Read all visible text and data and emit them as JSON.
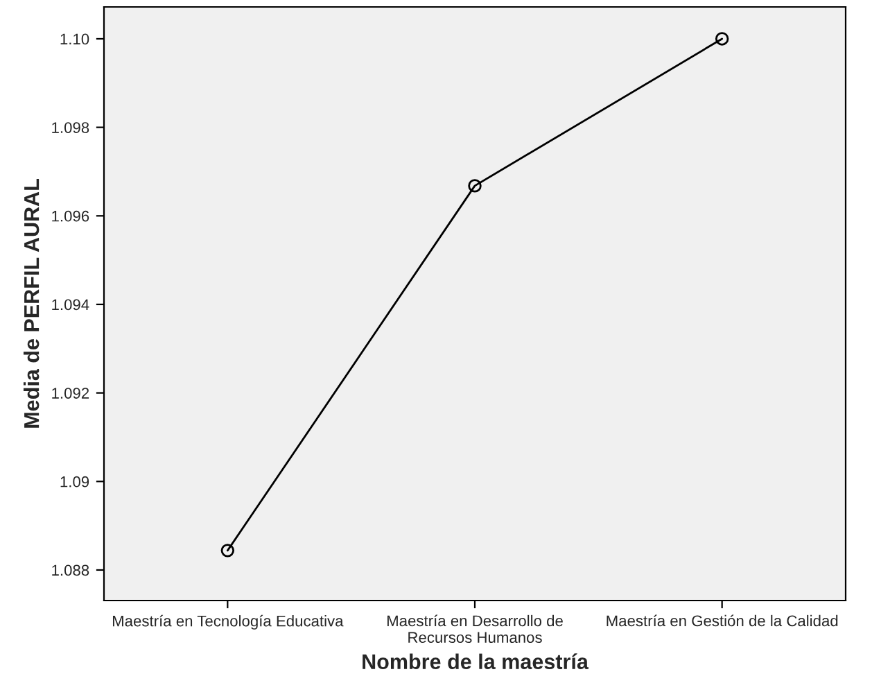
{
  "chart_data": {
    "type": "line",
    "xlabel": "Nombre de la maestría",
    "ylabel": "Media de PERFIL AURAL",
    "categories": [
      "Maestría en Tecnología Educativa",
      "Maestría en Desarrollo de\nRecursos Humanos",
      "Maestría en Gestión de la Calidad"
    ],
    "series": [
      {
        "color": "#000000",
        "values": [
          1.08844,
          1.09668,
          1.1
        ]
      }
    ],
    "ylim": [
      1.08731,
      1.10072
    ],
    "yticks": [
      1.088,
      1.09,
      1.092,
      1.094,
      1.096,
      1.098,
      {
        "value": 1.1,
        "label": "1.10"
      }
    ],
    "marker": "circle",
    "line_style": "solid",
    "grid": false,
    "legend": false
  }
}
